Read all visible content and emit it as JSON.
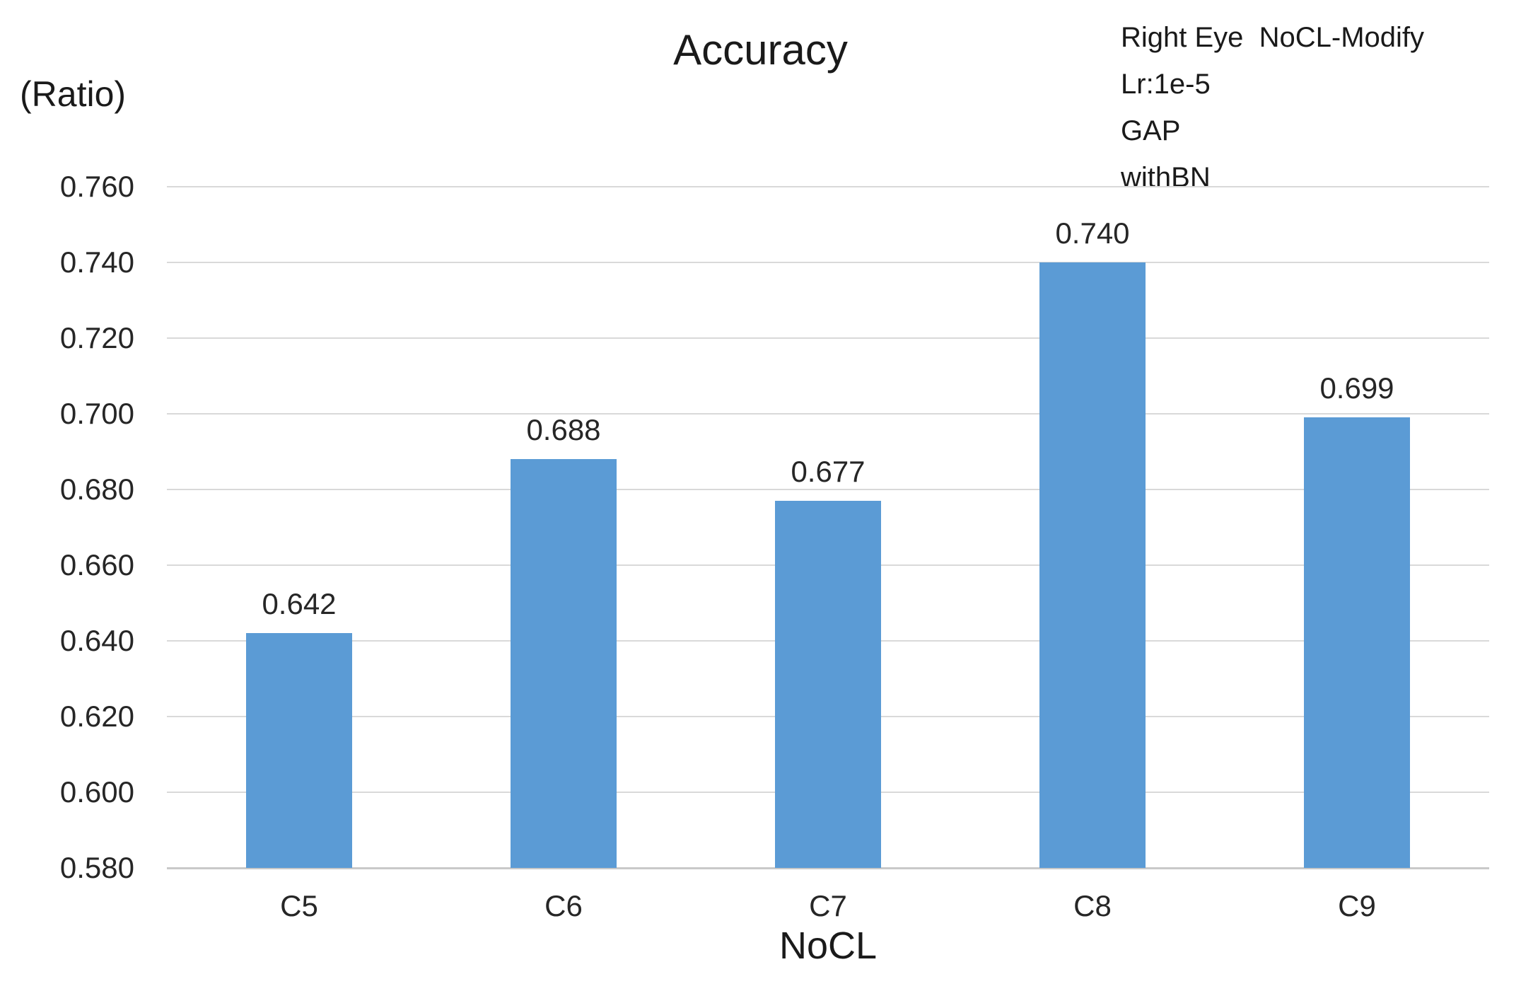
{
  "chart_data": {
    "type": "bar",
    "title": "Accuracy",
    "y_axis_unit_label": "(Ratio)",
    "x_axis_label": "NoCL",
    "categories": [
      "C5",
      "C6",
      "C7",
      "C8",
      "C9"
    ],
    "values": [
      0.642,
      0.688,
      0.677,
      0.74,
      0.699
    ],
    "data_labels": [
      "0.642",
      "0.688",
      "0.677",
      "0.740",
      "0.699"
    ],
    "ylim": [
      0.58,
      0.76
    ],
    "y_tick_step": 0.02,
    "y_tick_labels": [
      "0.580",
      "0.600",
      "0.620",
      "0.640",
      "0.660",
      "0.680",
      "0.700",
      "0.720",
      "0.740",
      "0.760"
    ],
    "grid": true,
    "legend": "none",
    "series_name": "Accuracy",
    "annotation_lines": [
      "Right Eye  NoCL-Modify",
      "Lr:1e-5",
      "GAP",
      "withBN"
    ],
    "colors": {
      "bar": "#5b9bd5",
      "gridline": "#d9d9d9",
      "axis_line": "#c9c9c9",
      "text": "#262626"
    }
  }
}
